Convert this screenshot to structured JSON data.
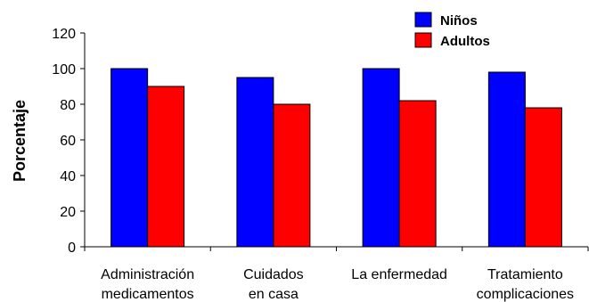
{
  "chart_data": {
    "type": "bar",
    "ylabel": "Porcentaje",
    "ylim": [
      0,
      120
    ],
    "yticks": [
      0,
      20,
      40,
      60,
      80,
      100,
      120
    ],
    "grid": false,
    "legend_position": "top-right",
    "categories": [
      [
        "Administración",
        "medicamentos"
      ],
      [
        "Cuidados",
        "en casa"
      ],
      [
        "La enfermedad"
      ],
      [
        "Tratamiento",
        "complicaciones"
      ]
    ],
    "series": [
      {
        "name": "Niños",
        "color": "#0000ff",
        "values": [
          100,
          95,
          100,
          98
        ]
      },
      {
        "name": "Adultos",
        "color": "#ff0000",
        "values": [
          90,
          80,
          82,
          78
        ]
      }
    ]
  }
}
